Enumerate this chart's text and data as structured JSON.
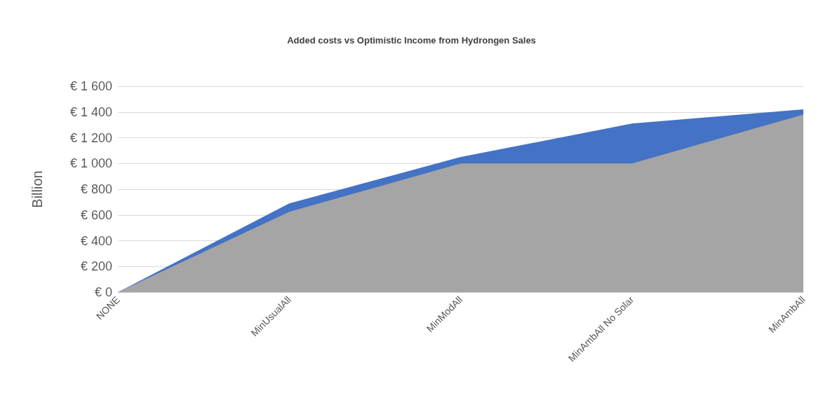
{
  "chart_data": {
    "type": "area",
    "title": "Added costs vs Optimistic Income from Hydrongen Sales",
    "ylabel": "Billion",
    "categories": [
      "NONE",
      "MinUsualAll",
      "MinModAll",
      "MinAmbAll No Solar",
      "MinAmbAll"
    ],
    "series": [
      {
        "color": "#4472c4",
        "values": [
          0,
          690,
          1050,
          1310,
          1420
        ]
      },
      {
        "color": "#a5a5a5",
        "values": [
          0,
          625,
          1000,
          1000,
          1380
        ]
      }
    ],
    "ylim": [
      0,
      1600
    ],
    "yticks": [
      {
        "value": 0,
        "label": "€ 0"
      },
      {
        "value": 200,
        "label": "€ 200"
      },
      {
        "value": 400,
        "label": "€ 400"
      },
      {
        "value": 600,
        "label": "€ 600"
      },
      {
        "value": 800,
        "label": "€ 800"
      },
      {
        "value": 1000,
        "label": "€ 1 000"
      },
      {
        "value": 1200,
        "label": "€ 1 200"
      },
      {
        "value": 1400,
        "label": "€ 1 400"
      },
      {
        "value": 1600,
        "label": "€ 1 600"
      }
    ],
    "grid": "y"
  }
}
